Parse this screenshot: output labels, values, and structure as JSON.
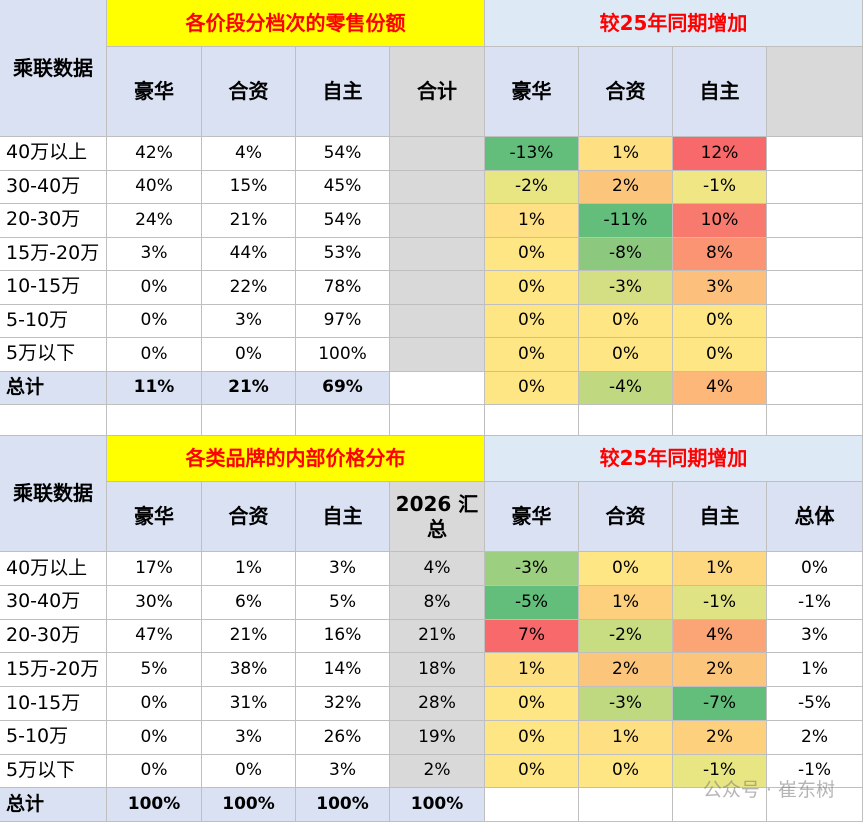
{
  "tables": [
    {
      "corner": "乘联数据",
      "title_left": "各价段分档次的零售份额",
      "title_right": "较25年同期增加",
      "share_columns": [
        "豪华",
        "合资",
        "自主",
        "合计"
      ],
      "change_columns": [
        "豪华",
        "合资",
        "自主"
      ],
      "rows": [
        {
          "label": "40万以上",
          "shares": [
            "42%",
            "4%",
            "54%"
          ],
          "changes": [
            "-13%",
            "1%",
            "12%"
          ]
        },
        {
          "label": "30-40万",
          "shares": [
            "40%",
            "15%",
            "45%"
          ],
          "changes": [
            "-2%",
            "2%",
            "-1%"
          ]
        },
        {
          "label": "20-30万",
          "shares": [
            "24%",
            "21%",
            "54%"
          ],
          "changes": [
            "1%",
            "-11%",
            "10%"
          ]
        },
        {
          "label": "15万-20万",
          "shares": [
            "3%",
            "44%",
            "53%"
          ],
          "changes": [
            "0%",
            "-8%",
            "8%"
          ]
        },
        {
          "label": "10-15万",
          "shares": [
            "0%",
            "22%",
            "78%"
          ],
          "changes": [
            "0%",
            "-3%",
            "3%"
          ]
        },
        {
          "label": "5-10万",
          "shares": [
            "0%",
            "3%",
            "97%"
          ],
          "changes": [
            "0%",
            "0%",
            "0%"
          ]
        },
        {
          "label": "5万以下",
          "shares": [
            "0%",
            "0%",
            "100%"
          ],
          "changes": [
            "0%",
            "0%",
            "0%"
          ]
        },
        {
          "label": "总计",
          "shares": [
            "11%",
            "21%",
            "69%"
          ],
          "changes": [
            "0%",
            "-4%",
            "4%"
          ]
        }
      ]
    },
    {
      "corner": "乘联数据",
      "title_left": "各类品牌的内部价格分布",
      "title_right": "较25年同期增加",
      "share_columns": [
        "豪华",
        "合资",
        "自主",
        "2026 汇总"
      ],
      "change_columns": [
        "豪华",
        "合资",
        "自主",
        "总体"
      ],
      "rows": [
        {
          "label": "40万以上",
          "shares": [
            "17%",
            "1%",
            "3%",
            "4%"
          ],
          "changes": [
            "-3%",
            "0%",
            "1%",
            "0%"
          ]
        },
        {
          "label": "30-40万",
          "shares": [
            "30%",
            "6%",
            "5%",
            "8%"
          ],
          "changes": [
            "-5%",
            "1%",
            "-1%",
            "-1%"
          ]
        },
        {
          "label": "20-30万",
          "shares": [
            "47%",
            "21%",
            "16%",
            "21%"
          ],
          "changes": [
            "7%",
            "-2%",
            "4%",
            "3%"
          ]
        },
        {
          "label": "15万-20万",
          "shares": [
            "5%",
            "38%",
            "14%",
            "18%"
          ],
          "changes": [
            "1%",
            "2%",
            "2%",
            "1%"
          ]
        },
        {
          "label": "10-15万",
          "shares": [
            "0%",
            "31%",
            "32%",
            "28%"
          ],
          "changes": [
            "0%",
            "-3%",
            "-7%",
            "-5%"
          ]
        },
        {
          "label": "5-10万",
          "shares": [
            "0%",
            "3%",
            "26%",
            "19%"
          ],
          "changes": [
            "0%",
            "1%",
            "2%",
            "2%"
          ]
        },
        {
          "label": "5万以下",
          "shares": [
            "0%",
            "0%",
            "3%",
            "2%"
          ],
          "changes": [
            "0%",
            "0%",
            "-1%",
            "-1%"
          ]
        },
        {
          "label": "总计",
          "shares": [
            "100%",
            "100%",
            "100%",
            "100%"
          ]
        }
      ]
    }
  ],
  "watermark": "公众号 · 崔东树"
}
